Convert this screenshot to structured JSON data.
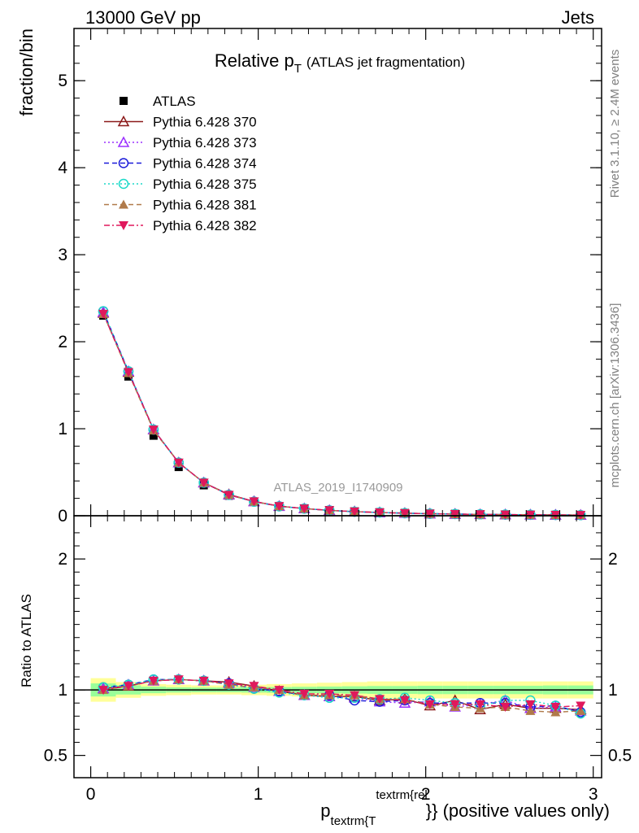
{
  "header": {
    "left": "13000 GeV pp",
    "right": "Jets"
  },
  "title": {
    "main": "Relative p",
    "sub": "T",
    "suffix": "(ATLAS jet fragmentation)"
  },
  "side_labels": {
    "rivet": "Rivet 3.1.10, ≥ 2.4M events",
    "mcplots": "mcplots.cern.ch [arXiv:1306.3436]"
  },
  "watermark": "ATLAS_2019_I1740909",
  "x_axis_label": {
    "p": "p",
    "sub": "textrm{T",
    "sup": "textrm{rel",
    "close": "}",
    "tail": "} (positive values only)"
  },
  "legend": [
    {
      "name": "ATLAS",
      "color": "#000000",
      "marker": "square-filled",
      "dash": "none"
    },
    {
      "name": "Pythia 6.428 370",
      "color": "#8b1a1a",
      "marker": "triangle-open",
      "dash": "solid"
    },
    {
      "name": "Pythia 6.428 373",
      "color": "#9b30ff",
      "marker": "triangle-open",
      "dash": "dotted"
    },
    {
      "name": "Pythia 6.428 374",
      "color": "#1a1ad9",
      "marker": "circle-open",
      "dash": "dashed"
    },
    {
      "name": "Pythia 6.428 375",
      "color": "#1ad9c8",
      "marker": "circle-open",
      "dash": "dotted"
    },
    {
      "name": "Pythia 6.428 381",
      "color": "#b07a4a",
      "marker": "triangle-filled",
      "dash": "dashed"
    },
    {
      "name": "Pythia 6.428 382",
      "color": "#e0185c",
      "marker": "triangle-down-filled",
      "dash": "dashdot"
    }
  ],
  "chart_data": [
    {
      "type": "line",
      "panel": "main",
      "ylabel": "fraction/bin",
      "xlim": [
        -0.1,
        3.05
      ],
      "ylim": [
        0,
        5.6
      ],
      "y_ticks": [
        0,
        1,
        2,
        3,
        4,
        5
      ],
      "x": [
        0.075,
        0.225,
        0.375,
        0.525,
        0.675,
        0.825,
        0.975,
        1.125,
        1.275,
        1.425,
        1.575,
        1.725,
        1.875,
        2.025,
        2.175,
        2.325,
        2.475,
        2.625,
        2.775,
        2.925
      ],
      "series": [
        {
          "name": "ATLAS",
          "values": [
            2.3,
            1.6,
            0.92,
            0.56,
            0.35,
            0.23,
            0.16,
            0.11,
            0.085,
            0.065,
            0.05,
            0.04,
            0.032,
            0.026,
            0.022,
            0.018,
            0.015,
            0.013,
            0.011,
            0.009
          ]
        },
        {
          "name": "Pythia 6.428 370",
          "values": [
            2.33,
            1.65,
            0.99,
            0.61,
            0.38,
            0.245,
            0.165,
            0.11,
            0.082,
            0.062,
            0.048,
            0.037,
            0.03,
            0.023,
            0.02,
            0.015,
            0.013,
            0.011,
            0.0095,
            0.0076
          ]
        },
        {
          "name": "Pythia 6.428 373",
          "values": [
            2.34,
            1.66,
            0.99,
            0.61,
            0.38,
            0.24,
            0.163,
            0.109,
            0.082,
            0.062,
            0.047,
            0.036,
            0.029,
            0.024,
            0.019,
            0.016,
            0.014,
            0.011,
            0.0096,
            0.0075
          ]
        },
        {
          "name": "Pythia 6.428 374",
          "values": [
            2.35,
            1.66,
            0.99,
            0.61,
            0.38,
            0.24,
            0.162,
            0.109,
            0.082,
            0.062,
            0.046,
            0.037,
            0.029,
            0.023,
            0.02,
            0.016,
            0.013,
            0.011,
            0.0095,
            0.0074
          ]
        },
        {
          "name": "Pythia 6.428 375",
          "values": [
            2.35,
            1.66,
            0.99,
            0.61,
            0.38,
            0.24,
            0.161,
            0.108,
            0.082,
            0.061,
            0.047,
            0.037,
            0.03,
            0.024,
            0.02,
            0.016,
            0.014,
            0.012,
            0.0097,
            0.0074
          ]
        },
        {
          "name": "Pythia 6.428 381",
          "values": [
            2.32,
            1.64,
            0.98,
            0.61,
            0.38,
            0.24,
            0.163,
            0.11,
            0.082,
            0.062,
            0.048,
            0.037,
            0.03,
            0.023,
            0.019,
            0.015,
            0.013,
            0.011,
            0.0091,
            0.0076
          ]
        },
        {
          "name": "Pythia 6.428 382",
          "values": [
            2.32,
            1.65,
            0.99,
            0.61,
            0.38,
            0.24,
            0.165,
            0.11,
            0.082,
            0.063,
            0.048,
            0.037,
            0.029,
            0.023,
            0.019,
            0.016,
            0.013,
            0.012,
            0.0096,
            0.008
          ]
        }
      ]
    },
    {
      "type": "line",
      "panel": "ratio",
      "ylabel": "Ratio to ATLAS",
      "xlabel_ticks": [
        0,
        1,
        2,
        3
      ],
      "xlim": [
        -0.1,
        3.05
      ],
      "ylim": [
        0.33,
        2.33
      ],
      "y_ticks": [
        0.5,
        1,
        2
      ],
      "x": [
        0.075,
        0.225,
        0.375,
        0.525,
        0.675,
        0.825,
        0.975,
        1.125,
        1.275,
        1.425,
        1.575,
        1.725,
        1.875,
        2.025,
        2.175,
        2.325,
        2.475,
        2.625,
        2.775,
        2.925
      ],
      "band_inner": [
        0.05,
        0.035,
        0.025,
        0.02,
        0.018,
        0.018,
        0.02,
        0.022,
        0.024,
        0.026,
        0.028,
        0.03,
        0.03,
        0.032,
        0.032,
        0.032,
        0.032,
        0.032,
        0.034,
        0.034
      ],
      "band_outer": [
        0.09,
        0.06,
        0.045,
        0.04,
        0.035,
        0.035,
        0.04,
        0.045,
        0.05,
        0.055,
        0.06,
        0.065,
        0.065,
        0.065,
        0.065,
        0.065,
        0.065,
        0.065,
        0.065,
        0.065
      ],
      "series": [
        {
          "name": "Pythia 6.428 370",
          "values": [
            1.01,
            1.03,
            1.07,
            1.08,
            1.07,
            1.06,
            1.03,
            0.99,
            0.96,
            0.95,
            0.95,
            0.92,
            0.93,
            0.88,
            0.92,
            0.85,
            0.89,
            0.86,
            0.86,
            0.85
          ]
        },
        {
          "name": "Pythia 6.428 373",
          "values": [
            1.01,
            1.04,
            1.07,
            1.08,
            1.07,
            1.05,
            1.02,
            0.99,
            0.96,
            0.95,
            0.94,
            0.91,
            0.9,
            0.91,
            0.87,
            0.89,
            0.92,
            0.86,
            0.87,
            0.84
          ]
        },
        {
          "name": "Pythia 6.428 374",
          "values": [
            1.02,
            1.04,
            1.08,
            1.08,
            1.07,
            1.05,
            1.01,
            0.99,
            0.96,
            0.96,
            0.92,
            0.91,
            0.92,
            0.9,
            0.9,
            0.9,
            0.9,
            0.87,
            0.88,
            0.83
          ]
        },
        {
          "name": "Pythia 6.428 375",
          "values": [
            1.02,
            1.04,
            1.08,
            1.08,
            1.07,
            1.04,
            1.01,
            0.98,
            0.96,
            0.94,
            0.94,
            0.93,
            0.94,
            0.92,
            0.9,
            0.88,
            0.92,
            0.92,
            0.88,
            0.82
          ]
        },
        {
          "name": "Pythia 6.428 381",
          "values": [
            1.0,
            1.03,
            1.07,
            1.08,
            1.07,
            1.04,
            1.02,
            1.0,
            0.96,
            0.96,
            0.96,
            0.93,
            0.93,
            0.89,
            0.87,
            0.86,
            0.87,
            0.84,
            0.83,
            0.84
          ]
        },
        {
          "name": "Pythia 6.428 382",
          "values": [
            1.0,
            1.03,
            1.07,
            1.08,
            1.07,
            1.05,
            1.03,
            1.0,
            0.97,
            0.97,
            0.96,
            0.93,
            0.92,
            0.89,
            0.89,
            0.89,
            0.87,
            0.89,
            0.87,
            0.88
          ]
        }
      ]
    }
  ]
}
